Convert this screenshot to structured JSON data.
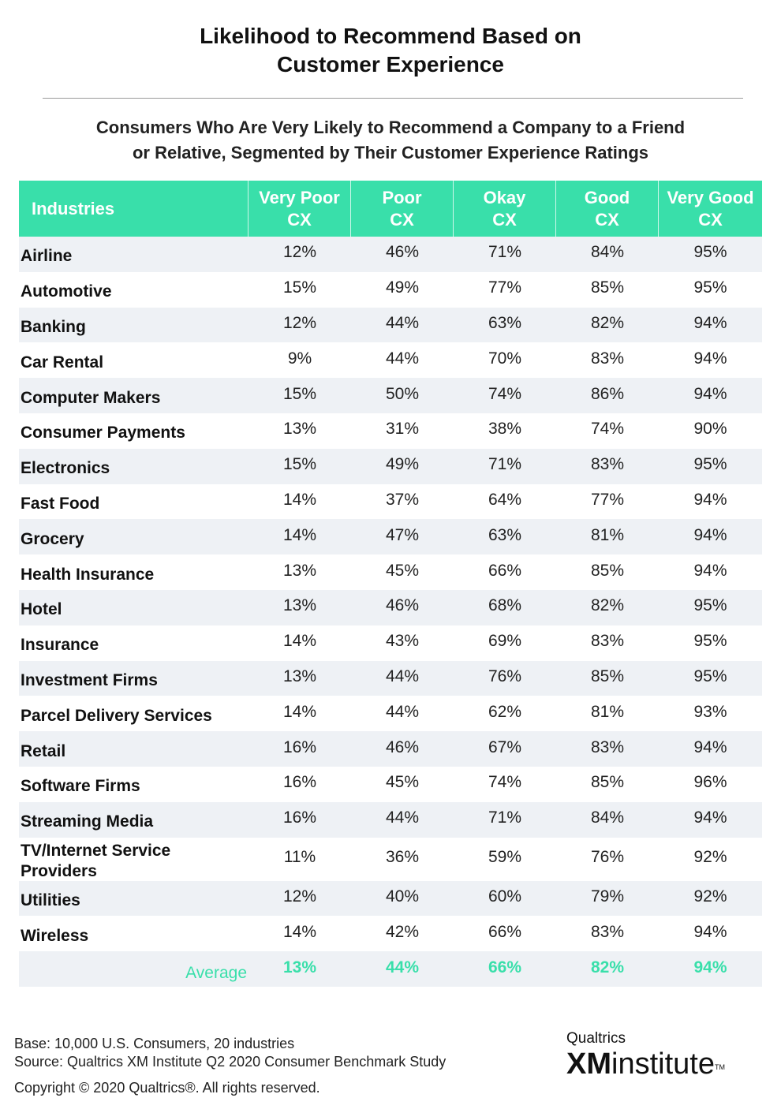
{
  "title": {
    "line1": "Likelihood to Recommend Based on",
    "line2": "Customer Experience"
  },
  "subtitle": {
    "line1": "Consumers Who Are Very Likely to Recommend a Company to a Friend",
    "line2": "or Relative, Segmented by Their Customer Experience Ratings"
  },
  "colors": {
    "accent": "#39dfaa",
    "shade": "#eef1f5"
  },
  "chart_data": {
    "type": "table",
    "title": "Likelihood to Recommend Based on Customer Experience",
    "subtitle": "Consumers Who Are Very Likely to Recommend a Company to a Friend or Relative, Segmented by Their Customer Experience Ratings",
    "headers": {
      "industries": "Industries",
      "columns": [
        {
          "line1": "Very Poor",
          "line2": "CX"
        },
        {
          "line1": "Poor",
          "line2": "CX"
        },
        {
          "line1": "Okay",
          "line2": "CX"
        },
        {
          "line1": "Good",
          "line2": "CX"
        },
        {
          "line1": "Very Good",
          "line2": "CX"
        }
      ]
    },
    "rows": [
      {
        "industry": "Airline",
        "values": [
          "12%",
          "46%",
          "71%",
          "84%",
          "95%"
        ]
      },
      {
        "industry": "Automotive",
        "values": [
          "15%",
          "49%",
          "77%",
          "85%",
          "95%"
        ]
      },
      {
        "industry": "Banking",
        "values": [
          "12%",
          "44%",
          "63%",
          "82%",
          "94%"
        ]
      },
      {
        "industry": "Car Rental",
        "values": [
          "9%",
          "44%",
          "70%",
          "83%",
          "94%"
        ]
      },
      {
        "industry": "Computer Makers",
        "values": [
          "15%",
          "50%",
          "74%",
          "86%",
          "94%"
        ]
      },
      {
        "industry": "Consumer Payments",
        "values": [
          "13%",
          "31%",
          "38%",
          "74%",
          "90%"
        ]
      },
      {
        "industry": "Electronics",
        "values": [
          "15%",
          "49%",
          "71%",
          "83%",
          "95%"
        ]
      },
      {
        "industry": "Fast Food",
        "values": [
          "14%",
          "37%",
          "64%",
          "77%",
          "94%"
        ]
      },
      {
        "industry": "Grocery",
        "values": [
          "14%",
          "47%",
          "63%",
          "81%",
          "94%"
        ]
      },
      {
        "industry": "Health Insurance",
        "values": [
          "13%",
          "45%",
          "66%",
          "85%",
          "94%"
        ]
      },
      {
        "industry": "Hotel",
        "values": [
          "13%",
          "46%",
          "68%",
          "82%",
          "95%"
        ]
      },
      {
        "industry": "Insurance",
        "values": [
          "14%",
          "43%",
          "69%",
          "83%",
          "95%"
        ]
      },
      {
        "industry": "Investment Firms",
        "values": [
          "13%",
          "44%",
          "76%",
          "85%",
          "95%"
        ]
      },
      {
        "industry": "Parcel Delivery Services",
        "values": [
          "14%",
          "44%",
          "62%",
          "81%",
          "93%"
        ]
      },
      {
        "industry": "Retail",
        "values": [
          "16%",
          "46%",
          "67%",
          "83%",
          "94%"
        ]
      },
      {
        "industry": "Software Firms",
        "values": [
          "16%",
          "45%",
          "74%",
          "85%",
          "96%"
        ]
      },
      {
        "industry": "Streaming Media",
        "values": [
          "16%",
          "44%",
          "71%",
          "84%",
          "94%"
        ]
      },
      {
        "industry": "TV/Internet Service Providers",
        "values": [
          "11%",
          "36%",
          "59%",
          "76%",
          "92%"
        ]
      },
      {
        "industry": "Utilities",
        "values": [
          "12%",
          "40%",
          "60%",
          "79%",
          "92%"
        ]
      },
      {
        "industry": "Wireless",
        "values": [
          "14%",
          "42%",
          "66%",
          "83%",
          "94%"
        ]
      }
    ],
    "average": {
      "label": "Average",
      "values": [
        "13%",
        "44%",
        "66%",
        "82%",
        "94%"
      ]
    }
  },
  "footer": {
    "base": "Base: 10,000 U.S. Consumers, 20 industries",
    "source": "Source: Qualtrics XM Institute Q2 2020 Consumer Benchmark Study",
    "copyright": "Copyright © 2020 Qualtrics®.  All rights reserved."
  },
  "logo": {
    "top": "Qualtrics",
    "xm": "XM",
    "institute": "institute",
    "tm": "TM"
  }
}
